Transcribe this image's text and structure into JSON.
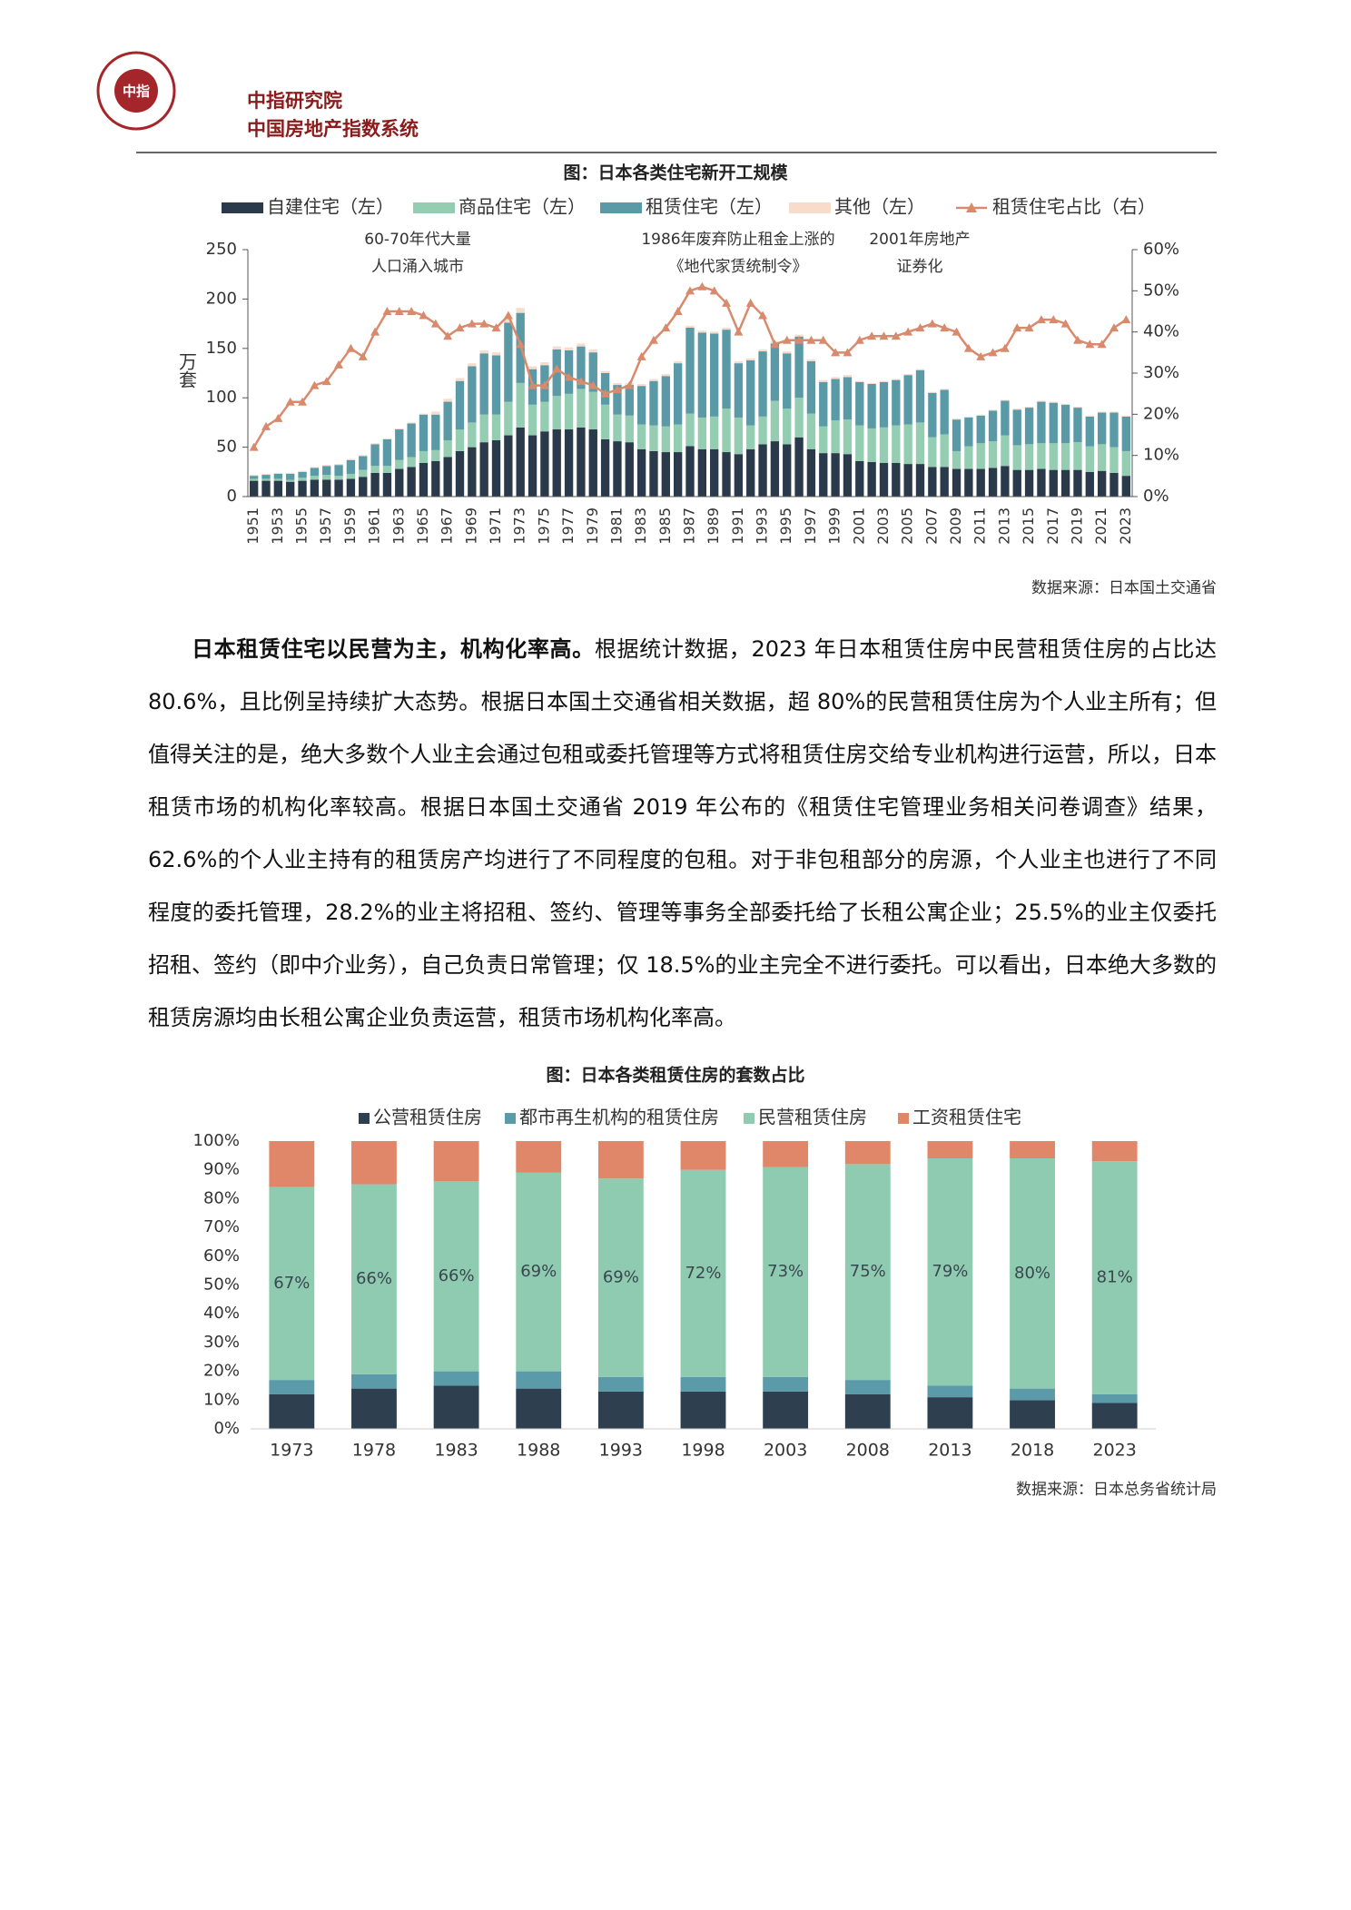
{
  "header": {
    "logo_text": "中指",
    "org": "中指研究院",
    "system": "中国房地产指数系统"
  },
  "paragraph": {
    "lead": "日本租赁住宅以民营为主，机构化率高。",
    "body": "根据统计数据，2023 年日本租赁住房中民营租赁住房的占比达 80.6%，且比例呈持续扩大态势。根据日本国土交通省相关数据，超 80%的民营租赁住房为个人业主所有；但值得关注的是，绝大多数个人业主会通过包租或委托管理等方式将租赁住房交给专业机构进行运营，所以，日本租赁市场的机构化率较高。根据日本国土交通省 2019 年公布的《租赁住宅管理业务相关问卷调查》结果，62.6%的个人业主持有的租赁房产均进行了不同程度的包租。对于非包租部分的房源，个人业主也进行了不同程度的委托管理，28.2%的业主将招租、签约、管理等事务全部委托给了长租公寓企业；25.5%的业主仅委托招租、签约（即中介业务），自己负责日常管理；仅 18.5%的业主完全不进行委托。可以看出，日本绝大多数的租赁房源均由长租公寓企业负责运营，租赁市场机构化率高。"
  },
  "chart_data": [
    {
      "type": "bar",
      "stacked": true,
      "title": "图：日本各类住宅新开工规模",
      "y_label": "万套",
      "source": "数据来源：日本国土交通省",
      "annotations": [
        [
          "60-70年代大量",
          "人口涌入城市"
        ],
        [
          "1986年废弃防止租金上涨的",
          "《地代家赁统制令》"
        ],
        [
          "2001年房地产",
          "证券化"
        ]
      ],
      "categories": [
        "1951",
        null,
        "1953",
        null,
        "1955",
        null,
        "1957",
        null,
        "1959",
        null,
        "1961",
        null,
        "1963",
        null,
        "1965",
        null,
        "1967",
        null,
        "1969",
        null,
        "1971",
        null,
        "1973",
        null,
        "1975",
        null,
        "1977",
        null,
        "1979",
        null,
        "1981",
        null,
        "1983",
        null,
        "1985",
        null,
        "1987",
        null,
        "1989",
        null,
        "1991",
        null,
        "1993",
        null,
        "1995",
        null,
        "1997",
        null,
        "1999",
        null,
        "2001",
        null,
        "2003",
        null,
        "2005",
        null,
        "2007",
        null,
        "2009",
        null,
        "2011",
        null,
        "2013",
        null,
        "2015",
        null,
        "2017",
        null,
        "2019",
        null,
        "2021",
        null,
        "2023"
      ],
      "ylim": [
        0,
        250
      ],
      "yticks": [
        0,
        50,
        100,
        150,
        200,
        250
      ],
      "y2lim": [
        0,
        60
      ],
      "y2ticks": [
        {
          "value": 0,
          "label": "0%"
        },
        {
          "value": 10,
          "label": "10%"
        },
        {
          "value": 20,
          "label": "20%"
        },
        {
          "value": 30,
          "label": "30%"
        },
        {
          "value": 40,
          "label": "40%"
        },
        {
          "value": 50,
          "label": "50%"
        },
        {
          "value": 60,
          "label": "60%"
        }
      ],
      "grid": false,
      "series": [
        {
          "name": "自建住宅（左）",
          "color": "#2b3a4a",
          "values": [
            16,
            16,
            16,
            15,
            16,
            17,
            17,
            17,
            18,
            20,
            24,
            24,
            28,
            30,
            34,
            36,
            40,
            46,
            50,
            55,
            57,
            62,
            70,
            62,
            66,
            68,
            68,
            70,
            68,
            58,
            56,
            55,
            48,
            46,
            45,
            45,
            51,
            48,
            48,
            45,
            43,
            48,
            53,
            56,
            53,
            60,
            48,
            44,
            44,
            43,
            36,
            35,
            34,
            34,
            33,
            33,
            30,
            30,
            28,
            28,
            28,
            29,
            31,
            27,
            27,
            28,
            27,
            27,
            27,
            25,
            26,
            24,
            21
          ]
        },
        {
          "name": "商品住宅（左）",
          "color": "#94cdb2",
          "values": [
            2,
            2,
            2,
            2,
            3,
            4,
            5,
            4,
            5,
            7,
            7,
            7,
            9,
            10,
            12,
            11,
            17,
            22,
            25,
            28,
            26,
            34,
            45,
            31,
            30,
            34,
            36,
            39,
            38,
            35,
            27,
            27,
            25,
            26,
            26,
            28,
            33,
            32,
            33,
            44,
            37,
            24,
            28,
            41,
            36,
            40,
            36,
            27,
            33,
            35,
            36,
            34,
            36,
            38,
            40,
            42,
            30,
            33,
            18,
            23,
            26,
            27,
            31,
            25,
            26,
            26,
            27,
            27,
            28,
            26,
            27,
            26,
            25
          ]
        },
        {
          "name": "租赁住宅（左）",
          "color": "#5a9aa7",
          "values": [
            3,
            4,
            5,
            6,
            6,
            8,
            9,
            11,
            14,
            14,
            22,
            27,
            31,
            34,
            37,
            36,
            39,
            49,
            57,
            62,
            60,
            80,
            71,
            36,
            37,
            47,
            44,
            43,
            40,
            32,
            30,
            31,
            39,
            45,
            51,
            62,
            87,
            86,
            84,
            80,
            55,
            66,
            66,
            58,
            56,
            62,
            53,
            45,
            42,
            43,
            44,
            45,
            46,
            46,
            50,
            53,
            45,
            45,
            32,
            29,
            28,
            31,
            35,
            36,
            37,
            42,
            41,
            39,
            35,
            30,
            32,
            35,
            35
          ]
        },
        {
          "name": "其他（左）",
          "color": "#f8dccb",
          "values": [
            1,
            1,
            1,
            1,
            1,
            1,
            1,
            1,
            1,
            1,
            1,
            1,
            1,
            1,
            1,
            3,
            3,
            3,
            3,
            3,
            3,
            5,
            5,
            3,
            3,
            3,
            3,
            3,
            3,
            2,
            2,
            2,
            2,
            2,
            2,
            2,
            2,
            2,
            2,
            2,
            2,
            2,
            2,
            2,
            2,
            2,
            2,
            2,
            2,
            2,
            1,
            1,
            1,
            1,
            1,
            1,
            1,
            1,
            1,
            1,
            1,
            1,
            1,
            1,
            1,
            1,
            1,
            1,
            1,
            1,
            1,
            1,
            1
          ]
        },
        {
          "name": "租赁住宅占比（右）",
          "color": "#d98a6c",
          "type": "line",
          "axis": "y2",
          "values": [
            12,
            17,
            19,
            23,
            23,
            27,
            28,
            32,
            36,
            34,
            40,
            45,
            45,
            45,
            44,
            42,
            39,
            41,
            42,
            42,
            41,
            44,
            37,
            27,
            27,
            31,
            29,
            28,
            27,
            25,
            26,
            27,
            34,
            38,
            41,
            45,
            50,
            51,
            50,
            47,
            40,
            47,
            44,
            37,
            38,
            38,
            38,
            38,
            35,
            35,
            38,
            39,
            39,
            39,
            40,
            41,
            42,
            41,
            40,
            36,
            34,
            35,
            36,
            41,
            41,
            43,
            43,
            42,
            38,
            37,
            37,
            41,
            43
          ]
        }
      ]
    },
    {
      "type": "bar",
      "stacked": true,
      "title": "图：日本各类租赁住房的套数占比",
      "source": "数据来源：日本总务省统计局",
      "categories": [
        "1973",
        "1978",
        "1983",
        "1988",
        "1993",
        "1998",
        "2003",
        "2008",
        "2013",
        "2018",
        "2023"
      ],
      "ylim": [
        0,
        100
      ],
      "yticks": [
        {
          "value": 0,
          "label": "0%"
        },
        {
          "value": 10,
          "label": "10%"
        },
        {
          "value": 20,
          "label": "20%"
        },
        {
          "value": 30,
          "label": "30%"
        },
        {
          "value": 40,
          "label": "40%"
        },
        {
          "value": 50,
          "label": "50%"
        },
        {
          "value": 60,
          "label": "60%"
        },
        {
          "value": 70,
          "label": "70%"
        },
        {
          "value": 80,
          "label": "80%"
        },
        {
          "value": 90,
          "label": "90%"
        },
        {
          "value": 100,
          "label": "100%"
        }
      ],
      "grid": false,
      "series": [
        {
          "name": "公营租赁住房",
          "color": "#2e3f50",
          "values": [
            12,
            14,
            15,
            14,
            13,
            13,
            13,
            12,
            11,
            10,
            9
          ]
        },
        {
          "name": "都市再生机构的租赁住房",
          "color": "#5b9aa8",
          "values": [
            5,
            5,
            5,
            6,
            5,
            5,
            5,
            5,
            4,
            4,
            3
          ]
        },
        {
          "name": "民营租赁住房",
          "color": "#8fcbb0",
          "values": [
            67,
            66,
            66,
            69,
            69,
            72,
            73,
            75,
            79,
            80,
            81
          ],
          "value_labels": [
            "67%",
            "66%",
            "66%",
            "69%",
            "69%",
            "72%",
            "73%",
            "75%",
            "79%",
            "80%",
            "81%"
          ]
        },
        {
          "name": "工资租赁住宅",
          "color": "#e0876a",
          "values": [
            16,
            15,
            14,
            11,
            13,
            10,
            9,
            8,
            6,
            6,
            7
          ]
        }
      ]
    }
  ]
}
